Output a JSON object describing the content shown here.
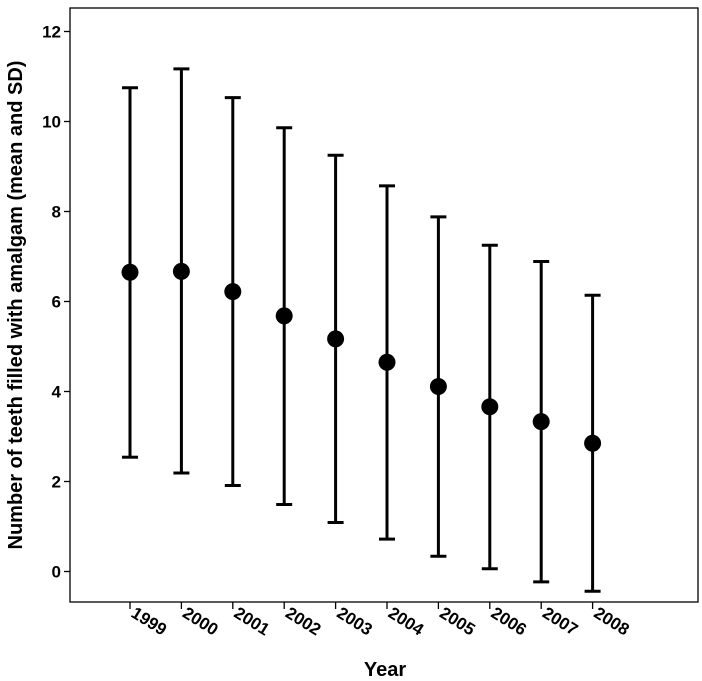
{
  "chart_data": {
    "type": "scatter",
    "xlabel": "Year",
    "ylabel": "Number of teeth filled with amalgam (mean and SD)",
    "categories": [
      "1999",
      "2000",
      "2001",
      "2002",
      "2003",
      "2004",
      "2005",
      "2006",
      "2007",
      "2008"
    ],
    "series": [
      {
        "mean": [
          6.65,
          6.67,
          6.22,
          5.68,
          5.17,
          4.65,
          4.11,
          3.66,
          3.33,
          2.85
        ],
        "upper": [
          10.75,
          11.17,
          10.53,
          9.86,
          9.25,
          8.57,
          7.88,
          7.25,
          6.89,
          6.14
        ],
        "lower": [
          2.54,
          2.19,
          1.91,
          1.49,
          1.09,
          0.72,
          0.34,
          0.06,
          -0.23,
          -0.44
        ]
      }
    ],
    "yticks": [
      0,
      2,
      4,
      6,
      8,
      10,
      12
    ],
    "ylim": [
      -0.68,
      12.6
    ],
    "grid": false,
    "legend": "none",
    "marker_color": "#000000"
  }
}
